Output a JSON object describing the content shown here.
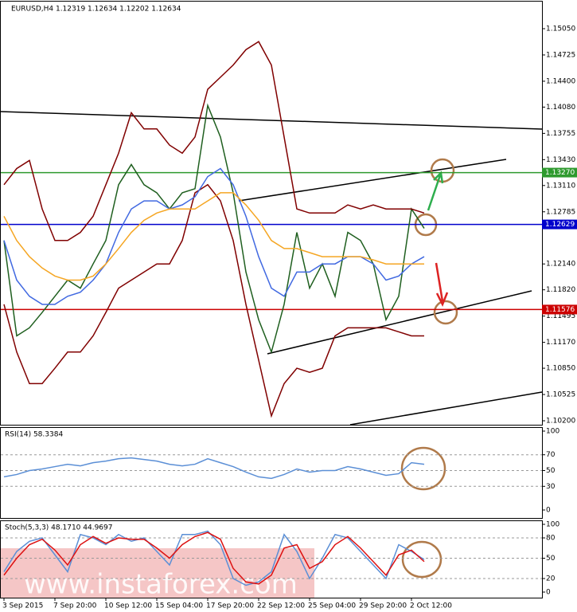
{
  "chart_data": [
    {
      "type": "line",
      "title": "EURUSD,H4  1.12319 1.12634 1.12202 1.12634",
      "series": [
        {
          "color": "#1f5f1f",
          "values": [
            1.1243,
            1.1125,
            1.1135,
            1.1154,
            1.1174,
            1.1194,
            1.1184,
            1.1214,
            1.1243,
            1.1312,
            1.1337,
            1.1312,
            1.1302,
            1.1282,
            1.1302,
            1.1307,
            1.141,
            1.1371,
            1.1302,
            1.1204,
            1.1145,
            1.1105,
            1.1164,
            1.1253,
            1.1184,
            1.1214,
            1.1174,
            1.1253,
            1.1243,
            1.1214,
            1.1145,
            1.1174,
            1.1282,
            1.1258
          ]
        },
        {
          "color": "#800000",
          "values": [
            1.1312,
            1.1332,
            1.1342,
            1.1282,
            1.1243,
            1.1243,
            1.1253,
            1.1273,
            1.1312,
            1.1351,
            1.1401,
            1.1381,
            1.1381,
            1.1361,
            1.1351,
            1.1371,
            1.143,
            1.1445,
            1.146,
            1.1479,
            1.1489,
            1.146,
            1.1371,
            1.1282,
            1.1277,
            1.1277,
            1.1277,
            1.1287,
            1.1282,
            1.1287,
            1.1282,
            1.1282,
            1.1282,
            1.1277
          ]
        },
        {
          "color": "#800000",
          "values": [
            1.1164,
            1.1105,
            1.1066,
            1.1066,
            1.1085,
            1.1105,
            1.1105,
            1.1125,
            1.1154,
            1.1184,
            1.1194,
            1.1204,
            1.1214,
            1.1214,
            1.1243,
            1.1302,
            1.1312,
            1.1292,
            1.1243,
            1.1164,
            1.1095,
            1.1026,
            1.1066,
            1.1085,
            1.108,
            1.1085,
            1.1125,
            1.1135,
            1.1135,
            1.1135,
            1.1135,
            1.113,
            1.1125,
            1.1125
          ]
        },
        {
          "color": "#4169e1",
          "values": [
            1.1243,
            1.1194,
            1.1174,
            1.1164,
            1.1164,
            1.1174,
            1.1179,
            1.1194,
            1.1214,
            1.1253,
            1.1282,
            1.1292,
            1.1292,
            1.1282,
            1.1287,
            1.1297,
            1.1322,
            1.1332,
            1.1312,
            1.1273,
            1.1223,
            1.1184,
            1.1174,
            1.1204,
            1.1204,
            1.1214,
            1.1214,
            1.1223,
            1.1223,
            1.1214,
            1.1194,
            1.1199,
            1.1214,
            1.1223
          ]
        },
        {
          "color": "#f5a623",
          "values": [
            1.1273,
            1.1243,
            1.1223,
            1.1209,
            1.1199,
            1.1194,
            1.1194,
            1.1199,
            1.1214,
            1.1233,
            1.1253,
            1.1268,
            1.1277,
            1.1282,
            1.1282,
            1.1282,
            1.1292,
            1.1302,
            1.1302,
            1.1287,
            1.1268,
            1.1243,
            1.1233,
            1.1233,
            1.1228,
            1.1223,
            1.1223,
            1.1223,
            1.1223,
            1.1219,
            1.1214,
            1.1214,
            1.1214,
            1.1214
          ]
        }
      ],
      "ylim": [
        1.15385,
        1.10151
      ],
      "yticks": [
        {
          "value": 1.1505,
          "label": "1.15050"
        },
        {
          "value": 1.14725,
          "label": "1.14725"
        },
        {
          "value": 1.144,
          "label": "1.14400"
        },
        {
          "value": 1.1408,
          "label": "1.14080"
        },
        {
          "value": 1.13755,
          "label": "1.13755"
        },
        {
          "value": 1.1343,
          "label": "1.13430"
        },
        {
          "value": 1.1311,
          "label": "1.13110"
        },
        {
          "value": 1.12785,
          "label": "1.12785"
        },
        {
          "value": 1.1214,
          "label": "1.12140"
        },
        {
          "value": 1.1182,
          "label": "1.11820"
        },
        {
          "value": 1.11495,
          "label": "1.11495"
        },
        {
          "value": 1.1117,
          "label": "1.11170"
        },
        {
          "value": 1.1085,
          "label": "1.10850"
        },
        {
          "value": 1.10525,
          "label": "1.10525"
        },
        {
          "value": 1.102,
          "label": "1.10200"
        }
      ],
      "levels": [
        {
          "value": 1.1327,
          "label": "1.13270",
          "color": "#2e9a2e"
        },
        {
          "value": 1.12629,
          "label": "1.12629",
          "color": "#0000cc"
        },
        {
          "value": 1.11576,
          "label": "1.11576",
          "color": "#cc0000"
        }
      ]
    },
    {
      "type": "line",
      "title": "RSI(14) 58.3384",
      "series": [
        {
          "color": "#5b8fd6",
          "values": [
            42,
            45,
            50,
            52,
            55,
            58,
            56,
            60,
            62,
            65,
            66,
            64,
            62,
            58,
            56,
            58,
            65,
            60,
            55,
            48,
            42,
            40,
            45,
            52,
            48,
            50,
            50,
            55,
            52,
            48,
            44,
            46,
            60,
            58
          ]
        }
      ],
      "ylim": [
        0,
        100
      ],
      "yticks": [
        0,
        30,
        50,
        70,
        100
      ]
    },
    {
      "type": "line",
      "title": "Stoch(5,3,3) 48.1710 44.9697",
      "categories": [
        "3 Sep 2015",
        null,
        null,
        null,
        "7 Sep 20:00",
        null,
        null,
        null,
        "10 Sep 12:00",
        null,
        null,
        null,
        "15 Sep 04:00",
        null,
        null,
        null,
        "17 Sep 20:00",
        null,
        null,
        null,
        "22 Sep 12:00",
        null,
        null,
        null,
        "25 Sep 04:00",
        null,
        null,
        null,
        "29 Sep 20:00",
        null,
        null,
        null,
        "2 Oct 12:00",
        null
      ],
      "series": [
        {
          "color": "#5b8fd6",
          "values": [
            30,
            60,
            75,
            80,
            55,
            30,
            85,
            80,
            70,
            85,
            75,
            80,
            60,
            40,
            85,
            85,
            90,
            70,
            20,
            10,
            15,
            30,
            85,
            60,
            20,
            50,
            85,
            80,
            60,
            40,
            20,
            70,
            60,
            48
          ]
        },
        {
          "color": "#dd1111",
          "values": [
            25,
            50,
            70,
            78,
            62,
            40,
            70,
            82,
            72,
            80,
            78,
            78,
            65,
            50,
            70,
            82,
            88,
            78,
            35,
            15,
            12,
            25,
            65,
            70,
            35,
            45,
            70,
            82,
            65,
            45,
            25,
            55,
            62,
            45
          ]
        }
      ],
      "ylim": [
        0,
        100
      ],
      "yticks": [
        0,
        20,
        50,
        80,
        100
      ],
      "watermark": "www.instaforex.com"
    }
  ]
}
